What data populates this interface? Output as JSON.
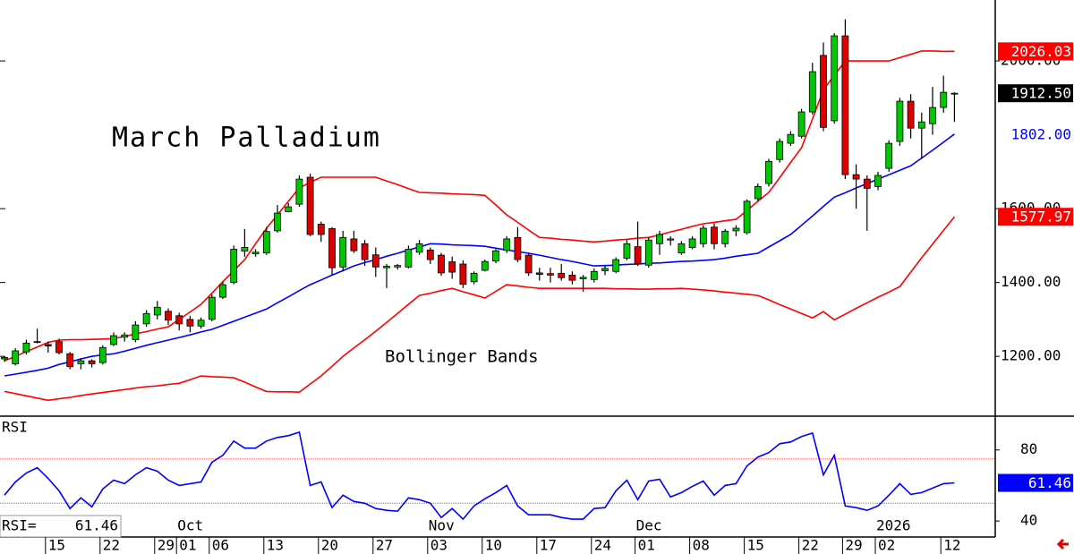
{
  "chart_data": [
    {
      "type": "candlestick",
      "title": "March Palladium",
      "annotation": "Bollinger Bands",
      "categories": [
        null,
        null,
        null,
        null,
        "15",
        null,
        null,
        null,
        null,
        "22",
        null,
        null,
        null,
        null,
        "29",
        null,
        "01",
        null,
        null,
        "06",
        null,
        null,
        null,
        null,
        "13",
        null,
        null,
        null,
        null,
        "20",
        null,
        null,
        null,
        null,
        "27",
        null,
        null,
        null,
        null,
        "03",
        null,
        null,
        null,
        null,
        "10",
        null,
        null,
        null,
        null,
        "17",
        null,
        null,
        null,
        null,
        "24",
        null,
        null,
        null,
        "01",
        null,
        null,
        null,
        null,
        "08",
        null,
        null,
        null,
        null,
        "15",
        null,
        null,
        null,
        null,
        "22",
        null,
        null,
        null,
        "29",
        null,
        null,
        "02",
        null,
        null,
        null,
        null,
        null,
        "12",
        null
      ],
      "period_labels": [
        null,
        null,
        null,
        null,
        null,
        null,
        null,
        null,
        null,
        null,
        null,
        null,
        null,
        null,
        null,
        null,
        "Oct",
        null,
        null,
        null,
        null,
        null,
        null,
        null,
        null,
        null,
        null,
        null,
        null,
        null,
        null,
        null,
        null,
        null,
        null,
        null,
        null,
        null,
        null,
        "Nov",
        null,
        null,
        null,
        null,
        null,
        null,
        null,
        null,
        null,
        null,
        null,
        null,
        null,
        null,
        null,
        null,
        null,
        null,
        "Dec",
        null,
        null,
        null,
        null,
        null,
        null,
        null,
        null,
        null,
        null,
        null,
        null,
        null,
        null,
        null,
        null,
        null,
        null,
        null,
        null,
        null,
        "2026",
        null,
        null,
        null,
        null,
        null,
        null,
        null
      ],
      "open": [
        1193,
        1180,
        1212,
        1240,
        1232,
        1240,
        1207,
        1180,
        1188,
        1183,
        1232,
        1252,
        1245,
        1288,
        1312,
        1322,
        1310,
        1300,
        1282,
        1300,
        1360,
        1400,
        1485,
        1478,
        1480,
        1540,
        1592,
        1612,
        1685,
        1558,
        1546,
        1442,
        1518,
        1505,
        1475,
        1440,
        1442,
        1442,
        1482,
        1488,
        1474,
        1456,
        1450,
        1402,
        1433,
        1458,
        1487,
        1522,
        1474,
        1426,
        1424,
        1425,
        1420,
        1410,
        1408,
        1432,
        1430,
        1466,
        1497,
        1447,
        1505,
        1515,
        1480,
        1495,
        1505,
        1550,
        1505,
        1540,
        1535,
        1627,
        1668,
        1733,
        1777,
        1796,
        1862,
        2015,
        1838,
        2068,
        1692,
        1680,
        1660,
        1709,
        1782,
        1891,
        1818,
        1830,
        1874,
        1910
      ],
      "high": [
        1200,
        1222,
        1245,
        1275,
        1240,
        1248,
        1212,
        1195,
        1192,
        1230,
        1265,
        1265,
        1295,
        1325,
        1350,
        1330,
        1318,
        1310,
        1305,
        1368,
        1402,
        1500,
        1545,
        1490,
        1550,
        1610,
        1615,
        1690,
        1695,
        1565,
        1550,
        1540,
        1540,
        1515,
        1495,
        1450,
        1450,
        1500,
        1515,
        1495,
        1480,
        1470,
        1460,
        1430,
        1462,
        1490,
        1525,
        1550,
        1480,
        1440,
        1440,
        1450,
        1430,
        1420,
        1438,
        1445,
        1468,
        1515,
        1565,
        1522,
        1540,
        1525,
        1512,
        1525,
        1555,
        1560,
        1545,
        1555,
        1625,
        1668,
        1735,
        1790,
        1810,
        1870,
        1995,
        2050,
        2075,
        2113,
        1720,
        1690,
        1700,
        1785,
        1900,
        1910,
        1860,
        1930,
        1960,
        1915
      ],
      "low": [
        1185,
        1175,
        1205,
        1235,
        1210,
        1205,
        1165,
        1165,
        1170,
        1178,
        1228,
        1240,
        1238,
        1280,
        1300,
        1285,
        1270,
        1265,
        1275,
        1295,
        1355,
        1395,
        1470,
        1470,
        1475,
        1535,
        1590,
        1605,
        1525,
        1510,
        1420,
        1430,
        1480,
        1445,
        1415,
        1385,
        1435,
        1438,
        1475,
        1450,
        1418,
        1410,
        1385,
        1395,
        1430,
        1452,
        1480,
        1455,
        1418,
        1405,
        1400,
        1405,
        1395,
        1375,
        1400,
        1420,
        1425,
        1460,
        1445,
        1440,
        1475,
        1500,
        1475,
        1490,
        1495,
        1490,
        1495,
        1525,
        1530,
        1620,
        1660,
        1725,
        1770,
        1790,
        1855,
        1810,
        1830,
        1680,
        1600,
        1540,
        1650,
        1700,
        1770,
        1790,
        1735,
        1800,
        1860,
        1835
      ],
      "close": [
        1197,
        1215,
        1236,
        1238,
        1228,
        1210,
        1172,
        1188,
        1180,
        1224,
        1256,
        1258,
        1285,
        1316,
        1333,
        1298,
        1288,
        1282,
        1298,
        1360,
        1394,
        1490,
        1495,
        1482,
        1538,
        1588,
        1605,
        1680,
        1530,
        1530,
        1440,
        1522,
        1486,
        1462,
        1442,
        1444,
        1446,
        1490,
        1505,
        1462,
        1426,
        1428,
        1395,
        1425,
        1457,
        1486,
        1518,
        1462,
        1426,
        1422,
        1420,
        1413,
        1406,
        1414,
        1430,
        1438,
        1462,
        1505,
        1450,
        1515,
        1530,
        1518,
        1505,
        1518,
        1547,
        1505,
        1539,
        1547,
        1620,
        1660,
        1728,
        1782,
        1801,
        1862,
        1971,
        1820,
        2068,
        1692,
        1680,
        1655,
        1690,
        1777,
        1891,
        1818,
        1835,
        1874,
        1915,
        1912.5
      ],
      "close_last_label": "1912.50",
      "up_color": "#00c800",
      "down_color": "#dc0000",
      "overlays": [
        {
          "type": "line",
          "color": "#ff0000",
          "label_fill": "#ff0000",
          "label_text_color": "#ffffff",
          "last_label": "2026.03",
          "values": [
            1188,
            1200,
            1213,
            1225,
            1238,
            1244,
            1245,
            1245,
            1246,
            1247,
            1248,
            1254,
            1261,
            1267,
            1274,
            1280,
            1300,
            1320,
            1341,
            1371,
            1402,
            1432,
            1462,
            1505,
            1547,
            1583,
            1620,
            1656,
            1671,
            1685,
            1685,
            1685,
            1685,
            1685,
            1685,
            1675,
            1665,
            1654,
            1644,
            1643,
            1642,
            1640,
            1639,
            1638,
            1636,
            1610,
            1583,
            1563,
            1542,
            1522,
            1520,
            1517,
            1515,
            1512,
            1510,
            1512,
            1515,
            1517,
            1520,
            1522,
            1529,
            1537,
            1544,
            1552,
            1559,
            1563,
            1567,
            1571,
            1595,
            1620,
            1644,
            1684,
            1725,
            1765,
            1843,
            1922,
            1961,
            2000,
            2000,
            2000,
            2000,
            2000,
            2009,
            2018,
            2027,
            2027,
            2026,
            2026.03
          ]
        },
        {
          "type": "line",
          "color": "#0000ff",
          "label_fill": "#ffffff",
          "label_text_color": "#0000ff",
          "last_label": "1802.00",
          "values": [
            1147,
            1152,
            1157,
            1162,
            1168,
            1178,
            1185,
            1193,
            1200,
            1204,
            1207,
            1214,
            1222,
            1230,
            1237,
            1244,
            1251,
            1258,
            1266,
            1273,
            1284,
            1295,
            1306,
            1317,
            1328,
            1345,
            1361,
            1378,
            1394,
            1407,
            1420,
            1432,
            1445,
            1454,
            1462,
            1471,
            1479,
            1488,
            1496,
            1505,
            1504,
            1502,
            1501,
            1500,
            1498,
            1493,
            1488,
            1484,
            1479,
            1474,
            1468,
            1462,
            1457,
            1451,
            1445,
            1446,
            1447,
            1449,
            1450,
            1452,
            1453,
            1455,
            1457,
            1458,
            1460,
            1462,
            1466,
            1471,
            1475,
            1479,
            1496,
            1513,
            1530,
            1555,
            1580,
            1606,
            1631,
            1643,
            1656,
            1668,
            1680,
            1692,
            1704,
            1716,
            1737,
            1758,
            1780,
            1802
          ]
        },
        {
          "type": "line",
          "color": "#ff0000",
          "label_fill": "#ff0000",
          "label_text_color": "#ffffff",
          "last_label": "1577.97",
          "values": [
            1105,
            1099,
            1093,
            1087,
            1081,
            1085,
            1089,
            1094,
            1098,
            1102,
            1106,
            1110,
            1114,
            1118,
            1120,
            1124,
            1127,
            1137,
            1147,
            1145,
            1144,
            1142,
            1130,
            1117,
            1105,
            1104,
            1104,
            1103,
            1125,
            1147,
            1173,
            1200,
            1223,
            1245,
            1268,
            1292,
            1316,
            1341,
            1365,
            1371,
            1378,
            1384,
            1375,
            1367,
            1358,
            1376,
            1394,
            1391,
            1387,
            1384,
            1384,
            1384,
            1384,
            1384,
            1384,
            1384,
            1383,
            1383,
            1382,
            1382,
            1383,
            1383,
            1384,
            1382,
            1380,
            1377,
            1374,
            1371,
            1368,
            1365,
            1353,
            1340,
            1328,
            1316,
            1304,
            1321,
            1299,
            1314,
            1330,
            1345,
            1360,
            1374,
            1389,
            1428,
            1467,
            1504,
            1541,
            1577.97
          ]
        }
      ],
      "ylim": [
        1038,
        2165
      ],
      "yticks": [
        {
          "value": 1200,
          "label": "1200.00"
        },
        {
          "value": 1400,
          "label": "1400.00"
        },
        {
          "value": 1600,
          "label": "1600.00"
        },
        {
          "value": 2000,
          "label": "2000.00"
        }
      ]
    },
    {
      "type": "line",
      "title": "RSI",
      "readout_label": "RSI=",
      "series": [
        {
          "color": "#0000ff",
          "label_fill": "#0000ff",
          "label_text_color": "#ffffff",
          "last_label": "61.46",
          "values": [
            54.5,
            62,
            67,
            70,
            64,
            57,
            47,
            53,
            48,
            58,
            63,
            61,
            66,
            70,
            68,
            63,
            60,
            61,
            62,
            73,
            77,
            85,
            81,
            81,
            85,
            87,
            88,
            90,
            60,
            62,
            47.5,
            54.5,
            51,
            50,
            47,
            46,
            45.5,
            53,
            52,
            50,
            42,
            47,
            41,
            48.5,
            52.5,
            56,
            60,
            48.5,
            43.5,
            43.5,
            43.5,
            42,
            41,
            41,
            47,
            47.5,
            57,
            63,
            52,
            62.5,
            63.5,
            53.5,
            56,
            59.5,
            62.5,
            54.5,
            60,
            61,
            71,
            76,
            78.5,
            83.5,
            84.5,
            87.5,
            89.5,
            66,
            77,
            48.5,
            47.5,
            46,
            48.5,
            54.5,
            61,
            55,
            56,
            58.5,
            61,
            61.46
          ]
        }
      ],
      "reference_lines": [
        {
          "value": 75,
          "color": "#ff8080"
        },
        {
          "value": 50,
          "color": "#808080"
        }
      ],
      "ylim": [
        31,
        98.5
      ],
      "yticks": [
        80,
        40
      ]
    }
  ]
}
